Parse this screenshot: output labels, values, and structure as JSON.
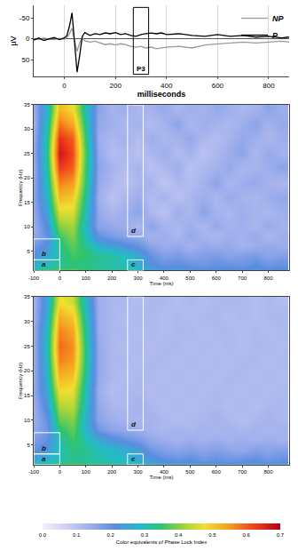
{
  "chart_data": [
    {
      "type": "line",
      "x": [
        -120,
        -100,
        -80,
        -60,
        -40,
        -20,
        0,
        10,
        20,
        30,
        40,
        50,
        60,
        70,
        80,
        100,
        120,
        140,
        160,
        180,
        200,
        220,
        240,
        260,
        280,
        300,
        320,
        340,
        360,
        380,
        400,
        450,
        500,
        550,
        600,
        650,
        700,
        750,
        800,
        850,
        880
      ],
      "series": [
        {
          "name": "NP",
          "color": "#9a9a9a",
          "values": [
            0,
            2,
            -2,
            1,
            2,
            -1,
            1,
            -3,
            -12,
            -25,
            5,
            30,
            10,
            -3,
            5,
            8,
            6,
            10,
            14,
            12,
            15,
            12,
            14,
            18,
            20,
            18,
            22,
            20,
            24,
            22,
            20,
            18,
            22,
            15,
            12,
            10,
            8,
            10,
            8,
            6,
            8
          ]
        },
        {
          "name": "P",
          "color": "#000000",
          "values": [
            3,
            -2,
            4,
            0,
            -3,
            2,
            -2,
            -8,
            -30,
            -62,
            10,
            80,
            40,
            -5,
            -15,
            -8,
            -12,
            -10,
            -14,
            -12,
            -15,
            -10,
            -12,
            -8,
            -6,
            -10,
            -12,
            -14,
            -12,
            -14,
            -10,
            -12,
            -8,
            -6,
            -10,
            -6,
            -8,
            -4,
            -6,
            -2,
            -4
          ]
        }
      ],
      "xlabel": "milliseconds",
      "ylabel": "µV",
      "xlim": [
        -120,
        880
      ],
      "ylim": [
        90,
        -80
      ],
      "xticks": [
        0,
        200,
        400,
        600,
        800
      ],
      "yticks": [
        -50,
        0,
        50
      ],
      "grid": true,
      "legend": "top right",
      "boxes": [
        {
          "label": "P3",
          "x0": 270,
          "x1": 330,
          "y0": -75,
          "y1": 85
        }
      ]
    },
    {
      "type": "heatmap",
      "x": [
        -100,
        -50,
        0,
        50,
        100,
        150,
        200,
        250,
        300,
        350,
        400,
        450,
        500,
        550,
        600,
        650,
        700,
        750,
        800,
        850
      ],
      "y": [
        1,
        2,
        4,
        6,
        8,
        10,
        13,
        16,
        19,
        22,
        25,
        28,
        31,
        34
      ],
      "z": [
        [
          0.34,
          0.36,
          0.38,
          0.38,
          0.36,
          0.35,
          0.34,
          0.33,
          0.3,
          0.26,
          0.24,
          0.25,
          0.24,
          0.22,
          0.24,
          0.23,
          0.22,
          0.24,
          0.22,
          0.23
        ],
        [
          0.28,
          0.3,
          0.33,
          0.34,
          0.33,
          0.32,
          0.31,
          0.3,
          0.27,
          0.22,
          0.2,
          0.21,
          0.2,
          0.19,
          0.2,
          0.2,
          0.19,
          0.21,
          0.19,
          0.2
        ],
        [
          0.22,
          0.26,
          0.32,
          0.36,
          0.35,
          0.33,
          0.32,
          0.3,
          0.26,
          0.2,
          0.17,
          0.18,
          0.16,
          0.17,
          0.18,
          0.16,
          0.17,
          0.18,
          0.16,
          0.17
        ],
        [
          0.18,
          0.22,
          0.33,
          0.38,
          0.33,
          0.28,
          0.25,
          0.22,
          0.2,
          0.16,
          0.14,
          0.15,
          0.13,
          0.15,
          0.14,
          0.15,
          0.13,
          0.14,
          0.15,
          0.14
        ],
        [
          0.15,
          0.2,
          0.36,
          0.4,
          0.3,
          0.2,
          0.18,
          0.16,
          0.15,
          0.13,
          0.14,
          0.12,
          0.15,
          0.13,
          0.12,
          0.14,
          0.13,
          0.15,
          0.12,
          0.14
        ],
        [
          0.14,
          0.22,
          0.4,
          0.42,
          0.28,
          0.16,
          0.15,
          0.14,
          0.12,
          0.16,
          0.13,
          0.12,
          0.14,
          0.12,
          0.15,
          0.13,
          0.14,
          0.12,
          0.15,
          0.13
        ],
        [
          0.15,
          0.25,
          0.46,
          0.46,
          0.3,
          0.15,
          0.12,
          0.14,
          0.16,
          0.12,
          0.1,
          0.14,
          0.12,
          0.16,
          0.13,
          0.12,
          0.14,
          0.13,
          0.12,
          0.14
        ],
        [
          0.16,
          0.28,
          0.52,
          0.5,
          0.32,
          0.14,
          0.1,
          0.12,
          0.14,
          0.11,
          0.13,
          0.1,
          0.12,
          0.14,
          0.12,
          0.15,
          0.13,
          0.12,
          0.14,
          0.15
        ],
        [
          0.15,
          0.3,
          0.57,
          0.55,
          0.34,
          0.15,
          0.12,
          0.1,
          0.12,
          0.13,
          0.09,
          0.12,
          0.11,
          0.13,
          0.16,
          0.12,
          0.14,
          0.15,
          0.13,
          0.12
        ],
        [
          0.14,
          0.32,
          0.63,
          0.6,
          0.35,
          0.16,
          0.13,
          0.11,
          0.13,
          0.1,
          0.12,
          0.14,
          0.1,
          0.12,
          0.13,
          0.15,
          0.12,
          0.13,
          0.14,
          0.16
        ],
        [
          0.15,
          0.33,
          0.67,
          0.62,
          0.36,
          0.15,
          0.11,
          0.12,
          0.1,
          0.12,
          0.14,
          0.11,
          0.13,
          0.1,
          0.12,
          0.14,
          0.16,
          0.12,
          0.15,
          0.13
        ],
        [
          0.14,
          0.32,
          0.64,
          0.6,
          0.34,
          0.14,
          0.12,
          0.13,
          0.11,
          0.14,
          0.12,
          0.13,
          0.15,
          0.12,
          0.11,
          0.13,
          0.15,
          0.14,
          0.12,
          0.14
        ],
        [
          0.13,
          0.3,
          0.58,
          0.54,
          0.32,
          0.15,
          0.14,
          0.12,
          0.13,
          0.11,
          0.13,
          0.16,
          0.12,
          0.14,
          0.13,
          0.12,
          0.14,
          0.16,
          0.13,
          0.15
        ],
        [
          0.14,
          0.28,
          0.52,
          0.48,
          0.3,
          0.16,
          0.13,
          0.14,
          0.12,
          0.13,
          0.15,
          0.12,
          0.14,
          0.13,
          0.15,
          0.14,
          0.12,
          0.13,
          0.16,
          0.14
        ]
      ],
      "xlabel": "Time (ms)",
      "ylabel": "Frequency (Hz)",
      "xlim": [
        -100,
        880
      ],
      "ylim": [
        1,
        35
      ],
      "xticks": [
        -100,
        0,
        100,
        200,
        300,
        400,
        500,
        600,
        700,
        800
      ],
      "yticks": [
        5,
        10,
        15,
        20,
        25,
        30,
        35
      ],
      "grid": false,
      "regions": [
        {
          "label": "a",
          "x0": -100,
          "x1": 0,
          "y0": 1,
          "y1": 3.2
        },
        {
          "label": "b",
          "x0": -100,
          "x1": 0,
          "y0": 3.2,
          "y1": 7.5
        },
        {
          "label": "c",
          "x0": 260,
          "x1": 320,
          "y0": 1,
          "y1": 3.2
        },
        {
          "label": "d",
          "x0": 260,
          "x1": 320,
          "y0": 8,
          "y1": 35
        }
      ]
    },
    {
      "type": "heatmap",
      "x": [
        -100,
        -50,
        0,
        50,
        100,
        150,
        200,
        250,
        300,
        350,
        400,
        450,
        500,
        550,
        600,
        650,
        700,
        750,
        800,
        850
      ],
      "y": [
        1,
        2,
        4,
        6,
        8,
        10,
        13,
        16,
        19,
        22,
        25,
        28,
        31,
        34
      ],
      "z": [
        [
          0.32,
          0.34,
          0.36,
          0.37,
          0.35,
          0.34,
          0.33,
          0.32,
          0.3,
          0.27,
          0.25,
          0.24,
          0.25,
          0.23,
          0.24,
          0.22,
          0.23,
          0.24,
          0.22,
          0.23
        ],
        [
          0.26,
          0.28,
          0.31,
          0.33,
          0.32,
          0.31,
          0.3,
          0.29,
          0.27,
          0.23,
          0.21,
          0.2,
          0.21,
          0.19,
          0.2,
          0.19,
          0.2,
          0.21,
          0.19,
          0.2
        ],
        [
          0.2,
          0.23,
          0.3,
          0.34,
          0.33,
          0.31,
          0.29,
          0.27,
          0.24,
          0.19,
          0.17,
          0.16,
          0.17,
          0.16,
          0.17,
          0.16,
          0.15,
          0.17,
          0.16,
          0.17
        ],
        [
          0.17,
          0.2,
          0.31,
          0.36,
          0.31,
          0.26,
          0.23,
          0.2,
          0.18,
          0.15,
          0.14,
          0.13,
          0.14,
          0.13,
          0.14,
          0.13,
          0.14,
          0.13,
          0.14,
          0.13
        ],
        [
          0.15,
          0.19,
          0.34,
          0.38,
          0.28,
          0.19,
          0.16,
          0.15,
          0.14,
          0.13,
          0.12,
          0.13,
          0.12,
          0.13,
          0.12,
          0.13,
          0.12,
          0.13,
          0.12,
          0.13
        ],
        [
          0.14,
          0.2,
          0.38,
          0.4,
          0.27,
          0.16,
          0.14,
          0.13,
          0.12,
          0.13,
          0.12,
          0.11,
          0.12,
          0.12,
          0.13,
          0.12,
          0.11,
          0.12,
          0.13,
          0.12
        ],
        [
          0.14,
          0.23,
          0.43,
          0.44,
          0.29,
          0.15,
          0.12,
          0.12,
          0.13,
          0.12,
          0.11,
          0.12,
          0.11,
          0.12,
          0.12,
          0.11,
          0.12,
          0.11,
          0.12,
          0.12
        ],
        [
          0.15,
          0.26,
          0.48,
          0.47,
          0.3,
          0.14,
          0.11,
          0.12,
          0.12,
          0.11,
          0.12,
          0.11,
          0.12,
          0.11,
          0.12,
          0.12,
          0.11,
          0.12,
          0.11,
          0.12
        ],
        [
          0.14,
          0.28,
          0.53,
          0.51,
          0.32,
          0.15,
          0.12,
          0.11,
          0.12,
          0.12,
          0.11,
          0.12,
          0.11,
          0.12,
          0.11,
          0.12,
          0.12,
          0.11,
          0.12,
          0.11
        ],
        [
          0.14,
          0.29,
          0.57,
          0.55,
          0.33,
          0.15,
          0.12,
          0.12,
          0.11,
          0.12,
          0.12,
          0.11,
          0.12,
          0.11,
          0.12,
          0.11,
          0.12,
          0.12,
          0.11,
          0.12
        ],
        [
          0.14,
          0.3,
          0.59,
          0.56,
          0.33,
          0.15,
          0.12,
          0.11,
          0.12,
          0.11,
          0.12,
          0.12,
          0.11,
          0.12,
          0.11,
          0.12,
          0.11,
          0.12,
          0.12,
          0.11
        ],
        [
          0.14,
          0.29,
          0.57,
          0.54,
          0.32,
          0.14,
          0.12,
          0.12,
          0.11,
          0.12,
          0.11,
          0.12,
          0.12,
          0.11,
          0.12,
          0.12,
          0.11,
          0.12,
          0.11,
          0.12
        ],
        [
          0.13,
          0.27,
          0.53,
          0.5,
          0.3,
          0.14,
          0.12,
          0.11,
          0.12,
          0.12,
          0.11,
          0.12,
          0.11,
          0.12,
          0.12,
          0.11,
          0.12,
          0.11,
          0.12,
          0.12
        ],
        [
          0.13,
          0.25,
          0.48,
          0.45,
          0.28,
          0.14,
          0.12,
          0.12,
          0.11,
          0.12,
          0.12,
          0.11,
          0.12,
          0.11,
          0.12,
          0.12,
          0.12,
          0.11,
          0.12,
          0.11
        ]
      ],
      "xlabel": "Time (ms)",
      "ylabel": "Frequency (Hz)",
      "xlim": [
        -100,
        880
      ],
      "ylim": [
        1,
        35
      ],
      "xticks": [
        -100,
        0,
        100,
        200,
        300,
        400,
        500,
        600,
        700,
        800
      ],
      "yticks": [
        5,
        10,
        15,
        20,
        25,
        30,
        35
      ],
      "grid": false,
      "regions": [
        {
          "label": "a",
          "x0": -100,
          "x1": 0,
          "y0": 1,
          "y1": 3.2
        },
        {
          "label": "b",
          "x0": -100,
          "x1": 0,
          "y0": 3.2,
          "y1": 7.5
        },
        {
          "label": "c",
          "x0": 260,
          "x1": 320,
          "y0": 1,
          "y1": 3.2
        },
        {
          "label": "d",
          "x0": 260,
          "x1": 320,
          "y0": 8,
          "y1": 35
        }
      ],
      "colorbar": {
        "title": "Color equivalents of Phase Lock Index",
        "range": [
          0,
          0.7
        ],
        "ticks": [
          {
            "value": 0,
            "label": "0.0"
          },
          0.1,
          0.2,
          0.3,
          0.4,
          0.5,
          0.6,
          0.7
        ]
      }
    }
  ]
}
